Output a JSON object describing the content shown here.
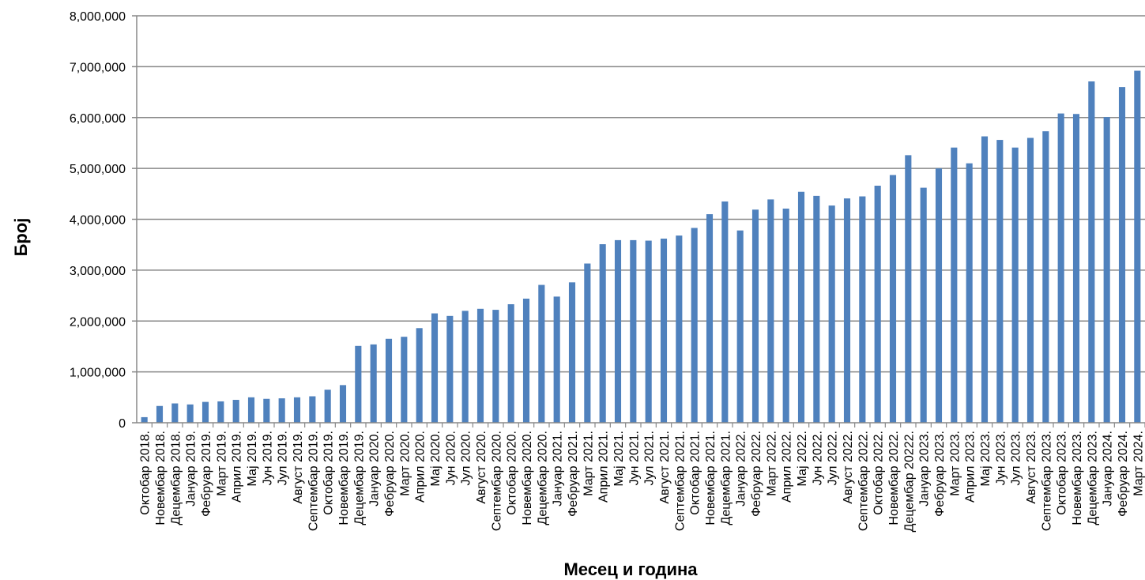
{
  "chart_data": {
    "type": "bar",
    "title": "",
    "xlabel": "Месец и година",
    "ylabel": "Број",
    "ylim": [
      0,
      8000000
    ],
    "yticks": [
      0,
      1000000,
      2000000,
      3000000,
      4000000,
      5000000,
      6000000,
      7000000,
      8000000
    ],
    "ytick_labels": [
      "0",
      "1,000,000",
      "2,000,000",
      "3,000,000",
      "4,000,000",
      "5,000,000",
      "6,000,000",
      "7,000,000",
      "8,000,000"
    ],
    "grid": true,
    "bar_color": "#4F81BD",
    "categories": [
      "Октобар 2018.",
      "Новембар 2018.",
      "Децембар 2018.",
      "Јануар 2019.",
      "Фебруар 2019.",
      "Март 2019.",
      "Април 2019.",
      "Мај 2019.",
      "Јун 2019.",
      "Јул 2019.",
      "Август 2019.",
      "Септембар 2019.",
      "Октобар 2019.",
      "Новембар 2019.",
      "Децембар 2019.",
      "Јануар 2020.",
      "Фебруар 2020.",
      "Март 2020.",
      "Април 2020.",
      "Мај 2020.",
      "Јун 2020.",
      "Јул 2020.",
      "Август 2020.",
      "Септембар 2020.",
      "Октобар 2020.",
      "Новембар 2020.",
      "Децембар 2020.",
      "Јануар 2021.",
      "Фебруар 2021.",
      "Март 2021.",
      "Април 2021.",
      "Мај 2021.",
      "Јун 2021.",
      "Јул 2021.",
      "Август 2021.",
      "Септембар 2021.",
      "Октобар 2021.",
      "Новембар 2021.",
      "Децембар 2021.",
      "Јануар 2022.",
      "Фебруар 2022.",
      "Март 2022.",
      "Април 2022.",
      "Мај 2022.",
      "Јун 2022.",
      "Јул 2022.",
      "Август 2022.",
      "Септембар 2022.",
      "Октобар 2022.",
      "Новембар 2022.",
      "Децембар 20222.",
      "Јануар 2023.",
      "Фебруар 2023.",
      "Март 2023.",
      "Април 2023.",
      "Мај 2023.",
      "Јун 2023.",
      "Јул 2023.",
      "Август 2023.",
      "Септембар 2023.",
      "Октобар 2023.",
      "Новембар 2023.",
      "Децембар 2023.",
      "Јануар 2024.",
      "Фебруар 2024.",
      "Март 2024."
    ],
    "values": [
      110000,
      330000,
      380000,
      360000,
      410000,
      420000,
      450000,
      500000,
      470000,
      480000,
      500000,
      520000,
      650000,
      740000,
      1510000,
      1540000,
      1650000,
      1690000,
      1860000,
      2150000,
      2100000,
      2200000,
      2240000,
      2220000,
      2330000,
      2440000,
      2710000,
      2480000,
      2760000,
      3130000,
      3510000,
      3590000,
      3590000,
      3580000,
      3620000,
      3680000,
      3830000,
      4100000,
      4350000,
      3780000,
      4190000,
      4390000,
      4210000,
      4540000,
      4460000,
      4270000,
      4410000,
      4450000,
      4660000,
      4870000,
      5260000,
      4620000,
      5000000,
      5410000,
      5100000,
      5630000,
      5560000,
      5410000,
      5600000,
      5730000,
      6080000,
      6070000,
      6710000,
      6010000,
      6600000,
      6920000
    ]
  }
}
